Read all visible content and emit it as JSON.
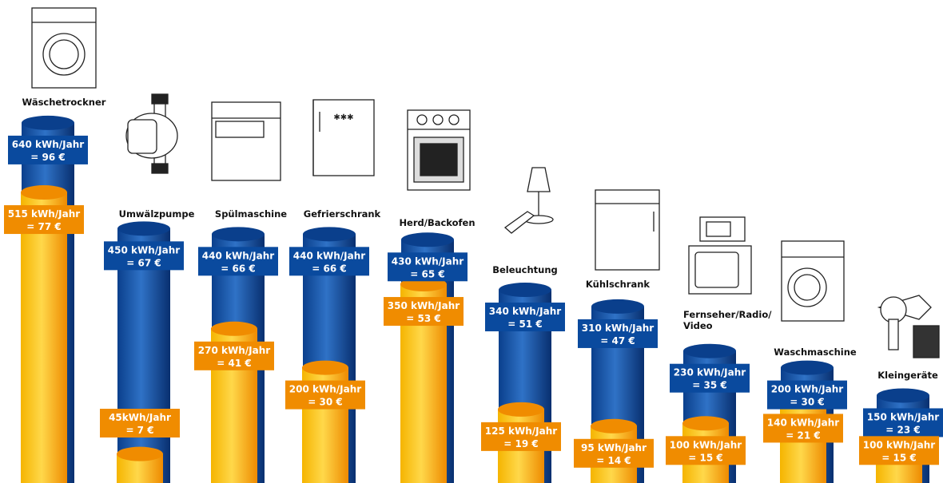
{
  "chart_data": {
    "type": "bar",
    "categories": [
      "Wäschetrockner",
      "Umwälzpumpe",
      "Spülmaschine",
      "Gefrierschrank",
      "Herd/Backofen",
      "Beleuchtung",
      "Kühlschrank",
      "Fernseher/Radio/Video",
      "Waschmaschine",
      "Kleingeräte"
    ],
    "series": [
      {
        "values": [
          640,
          450,
          440,
          440,
          430,
          340,
          310,
          230,
          200,
          150
        ],
        "color": "#0a4a9e"
      },
      {
        "values": [
          515,
          45,
          270,
          200,
          350,
          125,
          95,
          100,
          140,
          100
        ],
        "color": "#f39200"
      }
    ],
    "blue_labels": [
      [
        "640 kWh/Jahr",
        "= 96 €"
      ],
      [
        "450 kWh/Jahr",
        "= 67 €"
      ],
      [
        "440 kWh/Jahr",
        "= 66 €"
      ],
      [
        "440 kWh/Jahr",
        "= 66 €"
      ],
      [
        "430 kWh/Jahr",
        "= 65 €"
      ],
      [
        "340 kWh/Jahr",
        "= 51 €"
      ],
      [
        "310 kWh/Jahr",
        "= 47 €"
      ],
      [
        "230 kWh/Jahr",
        "= 35 €"
      ],
      [
        "200 kWh/Jahr",
        "= 30 €"
      ],
      [
        "150 kWh/Jahr",
        "= 23 €"
      ]
    ],
    "orange_labels": [
      [
        "515 kWh/Jahr",
        "= 77 €"
      ],
      [
        "45kWh/Jahr",
        "= 7 €"
      ],
      [
        "270 kWh/Jahr",
        "= 41 €"
      ],
      [
        "200 kWh/Jahr",
        "= 30 €"
      ],
      [
        "350 kWh/Jahr",
        "= 53 €"
      ],
      [
        "125 kWh/Jahr",
        "= 19 €"
      ],
      [
        "95 kWh/Jahr",
        "= 14 €"
      ],
      [
        "100 kWh/Jahr",
        "= 15 €"
      ],
      [
        "140 kWh/Jahr",
        "= 21 €"
      ],
      [
        "100 kWh/Jahr",
        "= 15 €"
      ]
    ],
    "icons": [
      "dryer-icon",
      "circulation-pump-icon",
      "dishwasher-icon",
      "freezer-icon",
      "stove-icon",
      "lamp-icon",
      "fridge-icon",
      "tv-radio-icon",
      "washing-machine-icon",
      "hairdryer-icon"
    ],
    "colors": {
      "blue": "#0a4a9e",
      "blue_light": "#3f7fd0",
      "orange": "#f39200",
      "orange_light": "#ffd200"
    }
  }
}
